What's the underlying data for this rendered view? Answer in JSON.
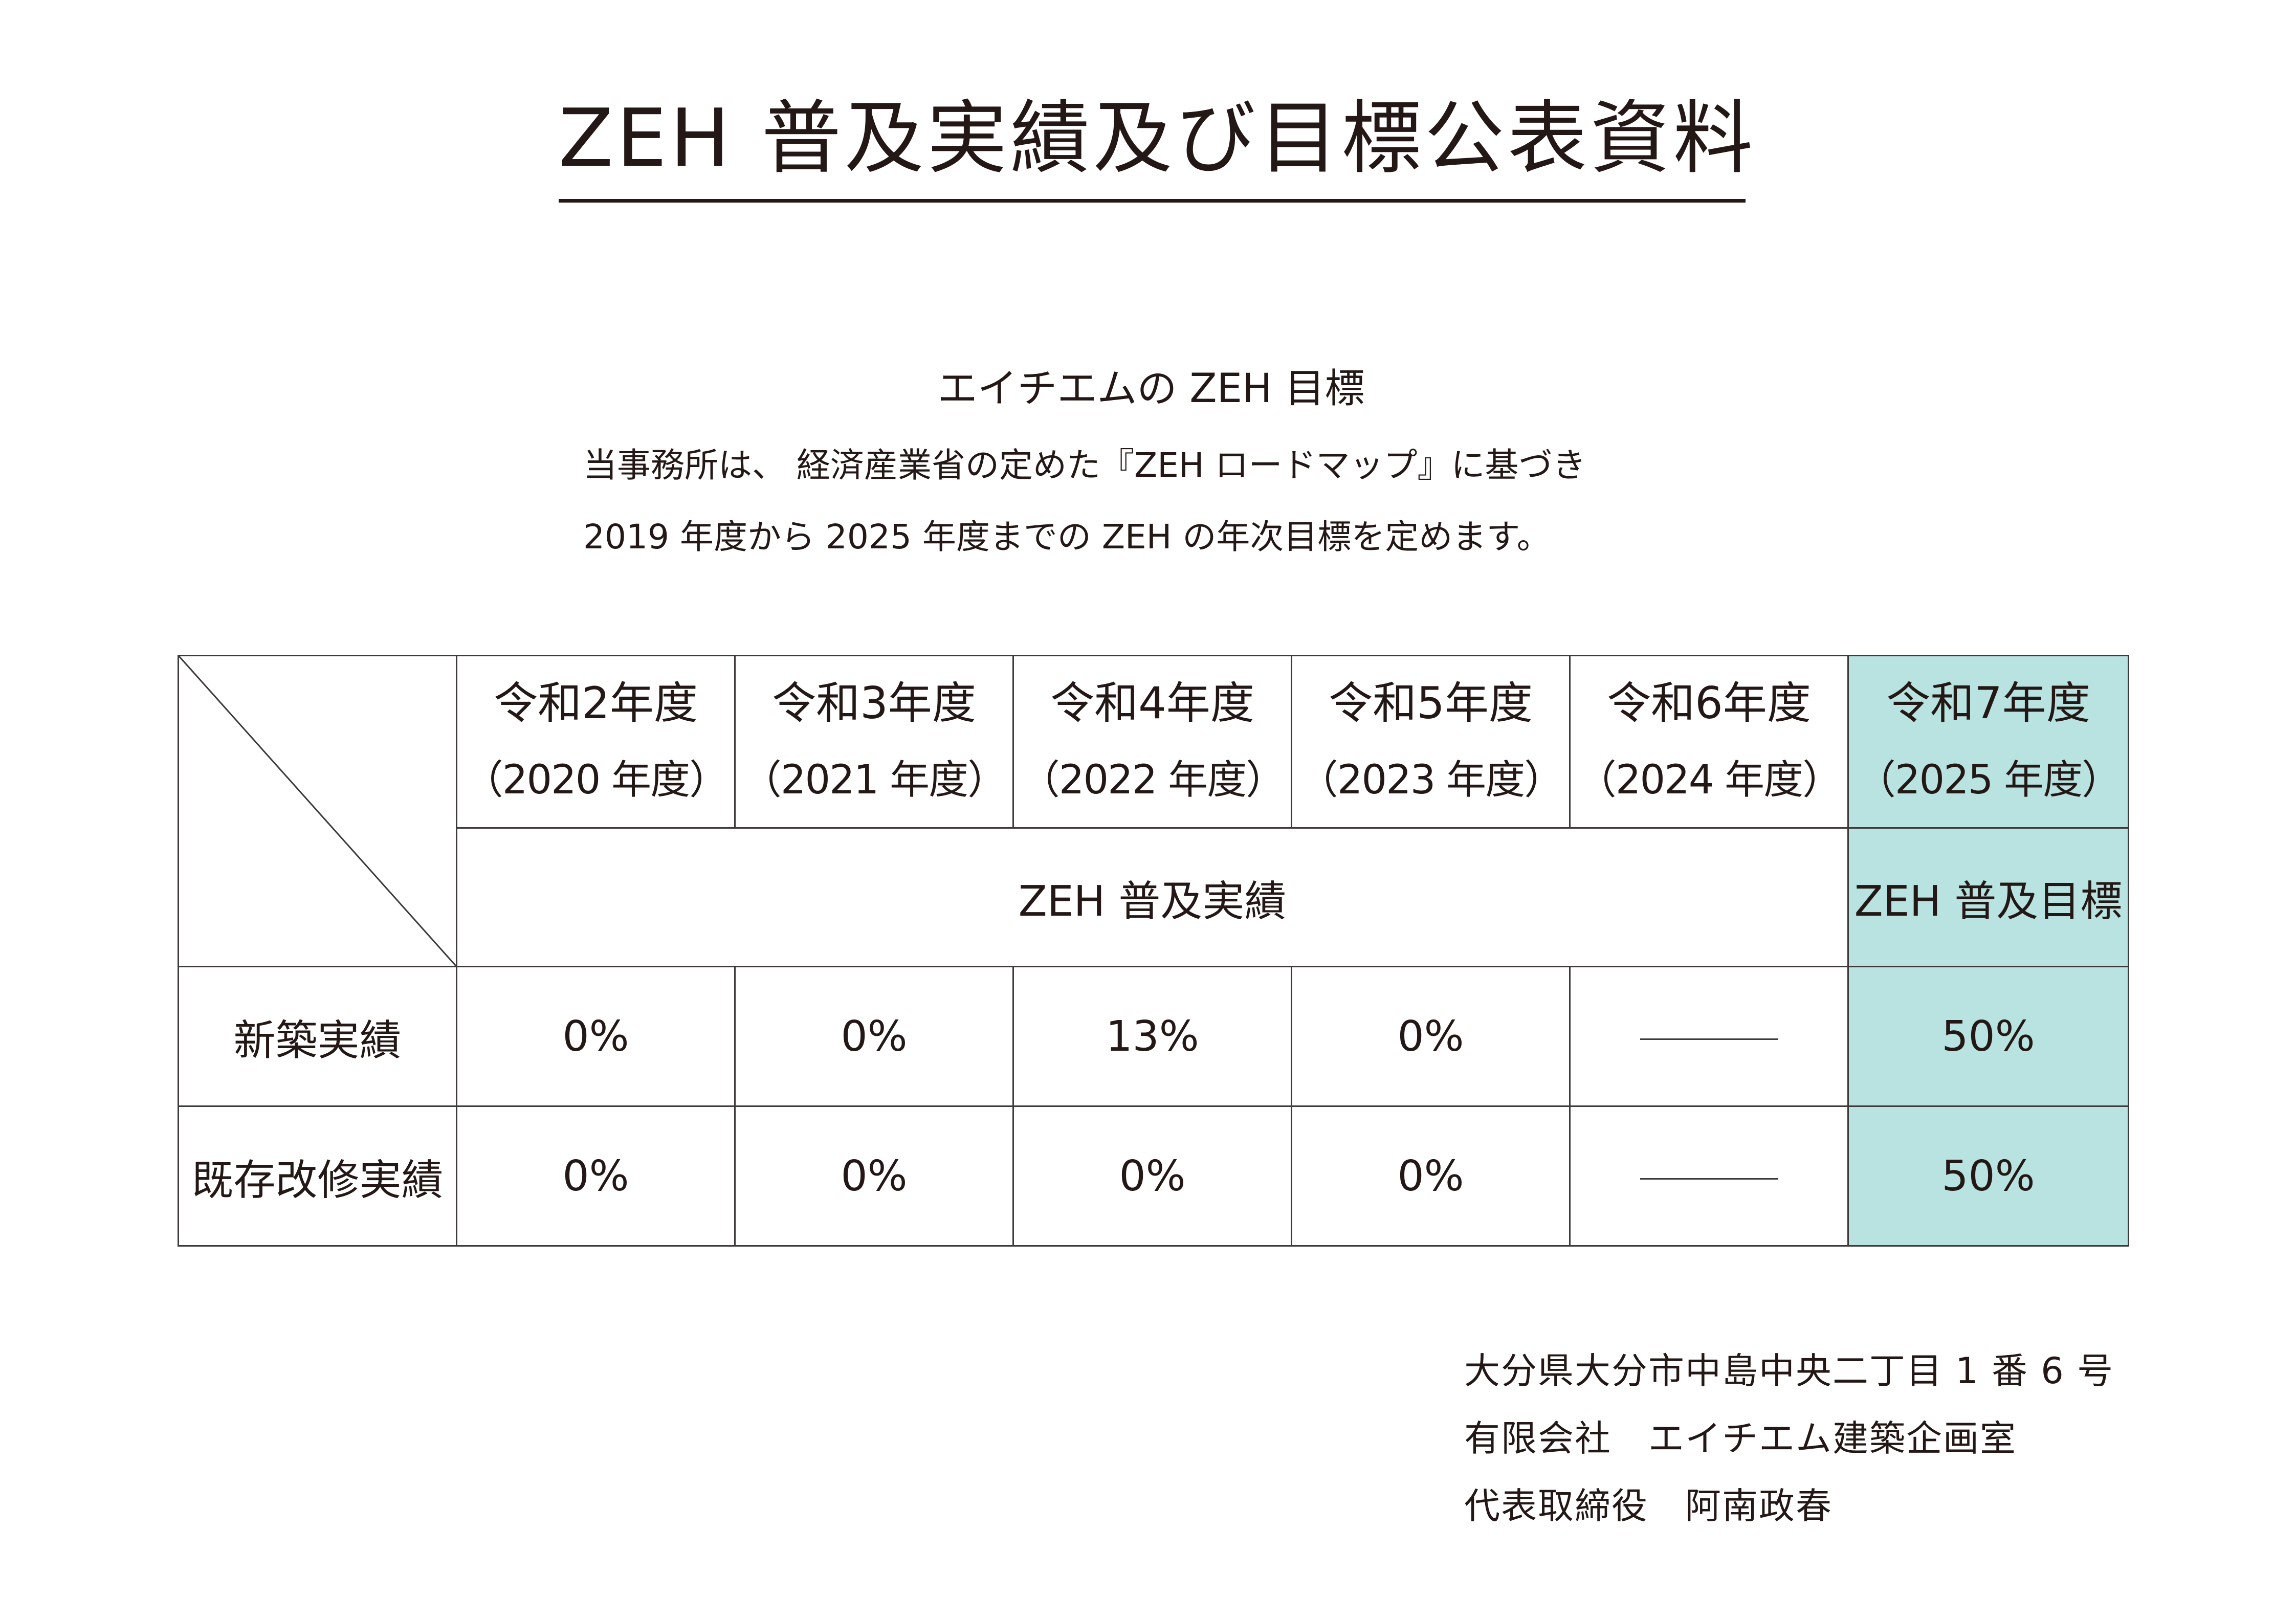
{
  "document": {
    "title": "ZEH 普及実績及び目標公表資料"
  },
  "goal": {
    "heading": "エイチエムの ZEH 目標",
    "line1": "当事務所は、 経済産業省の定めた『ZEH ロードマップ』に基づき",
    "line2": "2019 年度から 2025 年度までの ZEH の年次目標を定めます。"
  },
  "table": {
    "years": [
      {
        "era": "令和2年度",
        "ad": "（2020 年度）"
      },
      {
        "era": "令和3年度",
        "ad": "（2021 年度）"
      },
      {
        "era": "令和4年度",
        "ad": "（2022 年度）"
      },
      {
        "era": "令和5年度",
        "ad": "（2023 年度）"
      },
      {
        "era": "令和6年度",
        "ad": "（2024 年度）"
      },
      {
        "era": "令和7年度",
        "ad": "（2025 年度）"
      }
    ],
    "results_label": "ZEH 普及実績",
    "target_label": "ZEH 普及目標",
    "rows": [
      {
        "label": "新築実績",
        "values": [
          "0%",
          "0%",
          "13%",
          "0%",
          "",
          "50%"
        ]
      },
      {
        "label": "既存改修実績",
        "values": [
          "0%",
          "0%",
          "0%",
          "0%",
          "",
          "50%"
        ]
      }
    ],
    "highlight_color": "#b9e3e0"
  },
  "footer": {
    "address": "大分県大分市中島中央二丁目 1 番 6 号",
    "company": "有限会社　エイチエム建築企画室",
    "representative": "代表取締役　阿南政春"
  }
}
